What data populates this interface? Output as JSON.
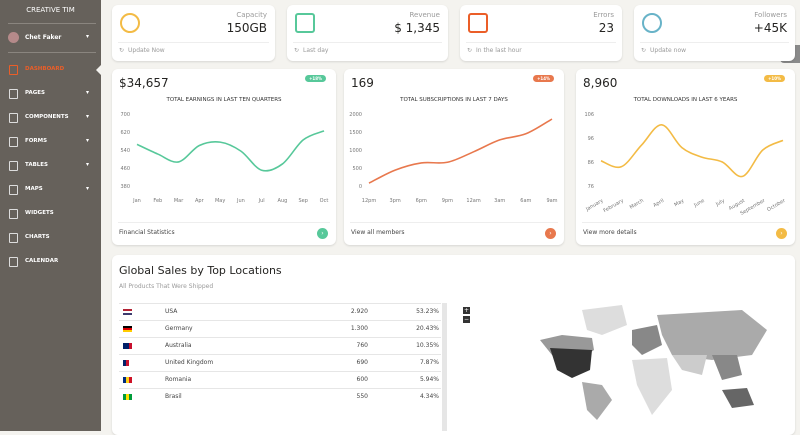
{
  "sidebar": {
    "brand": "CREATIVE TIM",
    "user": "Chet Faker",
    "menu": [
      "DASHBOARD",
      "PAGES",
      "COMPONENTS",
      "FORMS",
      "TABLES",
      "MAPS",
      "WIDGETS",
      "CHARTS",
      "CALENDAR"
    ]
  },
  "stats": [
    {
      "label": "Capacity",
      "value": "150GB",
      "footer": "Update Now"
    },
    {
      "label": "Revenue",
      "value": "$ 1,345",
      "footer": "Last day"
    },
    {
      "label": "Errors",
      "value": "23",
      "footer": "In the last hour"
    },
    {
      "label": "Followers",
      "value": "+45K",
      "footer": "Update now"
    }
  ],
  "chart_data": [
    {
      "type": "line",
      "headline": "$34,657",
      "badge": "+18%",
      "title": "TOTAL EARNINGS IN LAST TEN QUARTERS",
      "categories": [
        "Jan",
        "Feb",
        "Mar",
        "Apr",
        "May",
        "Jun",
        "Jul",
        "Aug",
        "Sep",
        "Oct"
      ],
      "values": [
        565,
        522,
        487,
        560,
        575,
        535,
        450,
        478,
        585,
        625
      ],
      "color": "#57c89a",
      "ylim": [
        380,
        700
      ],
      "yticks": [
        380,
        460,
        540,
        620,
        700
      ],
      "footer": "Financial Statistics"
    },
    {
      "type": "line",
      "headline": "169",
      "badge": "+14%",
      "title": "TOTAL SUBSCRIPTIONS IN LAST 7 DAYS",
      "categories": [
        "12pm",
        "3pm",
        "6pm",
        "9pm",
        "12am",
        "3am",
        "6am",
        "9am"
      ],
      "values": [
        80,
        440,
        640,
        660,
        950,
        1280,
        1450,
        1860
      ],
      "color": "#e8784d",
      "ylim": [
        0,
        2000
      ],
      "yticks": [
        0,
        500,
        1000,
        1500,
        2000
      ],
      "footer": "View all members"
    },
    {
      "type": "line",
      "headline": "8,960",
      "badge": "+10%",
      "title": "TOTAL DOWNLOADS IN LAST 6 YEARS",
      "categories": [
        "January",
        "February",
        "March",
        "April",
        "May",
        "June",
        "July",
        "August",
        "September",
        "October"
      ],
      "values": [
        86.5,
        84,
        93,
        101.5,
        92,
        88,
        86,
        80,
        91,
        95
      ],
      "color": "#f3bb45",
      "ylim": [
        76,
        106
      ],
      "yticks": [
        76,
        86,
        96,
        106
      ],
      "footer": "View more details"
    }
  ],
  "sales": {
    "title": "Global Sales by Top Locations",
    "subtitle": "All Products That Were Shipped",
    "rows": [
      [
        "USA",
        "2.920",
        "53.23%"
      ],
      [
        "Germany",
        "1.300",
        "20.43%"
      ],
      [
        "Australia",
        "760",
        "10.35%"
      ],
      [
        "United Kingdom",
        "690",
        "7.87%"
      ],
      [
        "Romania",
        "600",
        "5.94%"
      ],
      [
        "Brasil",
        "550",
        "4.34%"
      ]
    ]
  }
}
